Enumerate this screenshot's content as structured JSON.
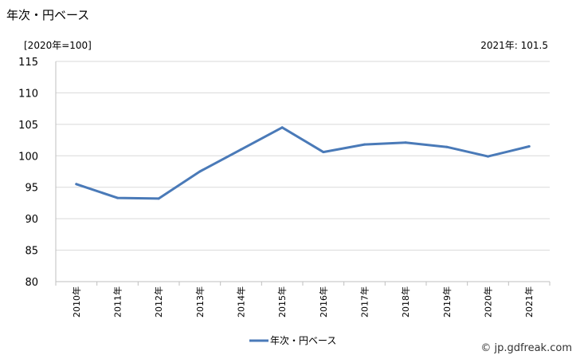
{
  "header": {
    "title": "年次・円ベース",
    "unit_label": "[2020年=100]",
    "latest_value": "2021年: 101.5"
  },
  "watermark": "© jp.gdfreak.com",
  "colors": {
    "series": "#4a7ab8",
    "grid": "#d9d9d9",
    "axis": "#bfbfbf"
  },
  "chart_data": {
    "type": "line",
    "categories": [
      "2010年",
      "2011年",
      "2012年",
      "2013年",
      "2014年",
      "2015年",
      "2016年",
      "2017年",
      "2018年",
      "2019年",
      "2020年",
      "2021年"
    ],
    "series": [
      {
        "name": "年次・円ベース",
        "values": [
          95.5,
          93.3,
          93.2,
          97.5,
          101.0,
          104.5,
          100.6,
          101.8,
          102.1,
          101.4,
          99.9,
          101.5
        ]
      }
    ],
    "ylim": [
      80,
      115
    ],
    "yticks": [
      80,
      85,
      90,
      95,
      100,
      105,
      110,
      115
    ],
    "grid": true,
    "legend": "bottom-center"
  }
}
